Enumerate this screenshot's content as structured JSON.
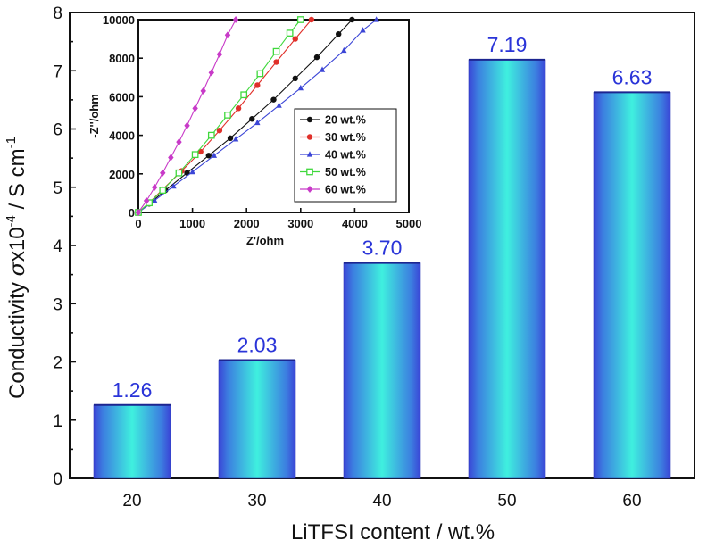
{
  "chart_data": [
    {
      "type": "bar",
      "categories": [
        "20",
        "30",
        "40",
        "50",
        "60"
      ],
      "values": [
        1.26,
        2.03,
        3.7,
        7.19,
        6.63
      ],
      "value_labels": [
        "1.26",
        "2.03",
        "3.70",
        "7.19",
        "6.63"
      ],
      "title": "",
      "xlabel": "LiTFSI content / wt.%",
      "ylabel_prefix": "Conductivity ",
      "ylabel_sigma": "σ",
      "ylabel_x10": "x10",
      "ylabel_exp1": "-4",
      "ylabel_unit": " / S cm",
      "ylabel_exp2": "-1",
      "ylim": [
        0,
        8
      ],
      "yticks": [
        "0",
        "1",
        "2",
        "3",
        "4",
        "5",
        "6",
        "7",
        "8"
      ],
      "grid": false,
      "colors": {
        "bar_edge": "#3a44d6",
        "bar_center": "#3ff0df",
        "value_label": "#2a34d8"
      }
    },
    {
      "type": "line",
      "title": "",
      "xlabel": "Z'/ohm",
      "ylabel": "-Z''/ohm",
      "xlim": [
        0,
        5000
      ],
      "ylim": [
        0,
        10000
      ],
      "xticks": [
        "0",
        "1000",
        "2000",
        "3000",
        "4000",
        "5000"
      ],
      "yticks": [
        "0",
        "2000",
        "4000",
        "6000",
        "8000",
        "10000"
      ],
      "legend_position": "inside-right",
      "series": [
        {
          "name": "20 wt.%",
          "color": "#111111",
          "marker": "circle",
          "points": [
            [
              0,
              0
            ],
            [
              200,
              450
            ],
            [
              500,
              1150
            ],
            [
              900,
              2050
            ],
            [
              1300,
              2950
            ],
            [
              1700,
              3850
            ],
            [
              2100,
              4850
            ],
            [
              2500,
              5850
            ],
            [
              2900,
              6950
            ],
            [
              3300,
              8050
            ],
            [
              3700,
              9250
            ],
            [
              3950,
              10000
            ]
          ]
        },
        {
          "name": "30 wt.%",
          "color": "#e0302a",
          "marker": "circle",
          "points": [
            [
              0,
              0
            ],
            [
              200,
              500
            ],
            [
              450,
              1200
            ],
            [
              800,
              2150
            ],
            [
              1150,
              3150
            ],
            [
              1500,
              4250
            ],
            [
              1850,
              5400
            ],
            [
              2200,
              6600
            ],
            [
              2550,
              7800
            ],
            [
              2900,
              9000
            ],
            [
              3200,
              10000
            ]
          ]
        },
        {
          "name": "40 wt.%",
          "color": "#3b45d6",
          "marker": "triangle",
          "points": [
            [
              0,
              0
            ],
            [
              300,
              620
            ],
            [
              650,
              1360
            ],
            [
              1000,
              2100
            ],
            [
              1400,
              2950
            ],
            [
              1800,
              3800
            ],
            [
              2200,
              4650
            ],
            [
              2600,
              5550
            ],
            [
              3000,
              6450
            ],
            [
              3400,
              7400
            ],
            [
              3800,
              8400
            ],
            [
              4150,
              9450
            ],
            [
              4400,
              10000
            ]
          ]
        },
        {
          "name": "50 wt.%",
          "color": "#3fd83c",
          "marker": "square",
          "points": [
            [
              0,
              0
            ],
            [
              200,
              500
            ],
            [
              450,
              1150
            ],
            [
              750,
              2050
            ],
            [
              1050,
              3000
            ],
            [
              1350,
              4000
            ],
            [
              1650,
              5050
            ],
            [
              1950,
              6100
            ],
            [
              2250,
              7200
            ],
            [
              2550,
              8350
            ],
            [
              2800,
              9300
            ],
            [
              3000,
              10000
            ]
          ]
        },
        {
          "name": "60 wt.%",
          "color": "#c83ac8",
          "marker": "diamond",
          "points": [
            [
              0,
              0
            ],
            [
              150,
              600
            ],
            [
              300,
              1300
            ],
            [
              450,
              2050
            ],
            [
              600,
              2850
            ],
            [
              750,
              3650
            ],
            [
              900,
              4500
            ],
            [
              1050,
              5400
            ],
            [
              1200,
              6300
            ],
            [
              1350,
              7250
            ],
            [
              1500,
              8200
            ],
            [
              1650,
              9200
            ],
            [
              1800,
              10000
            ]
          ]
        }
      ]
    }
  ]
}
